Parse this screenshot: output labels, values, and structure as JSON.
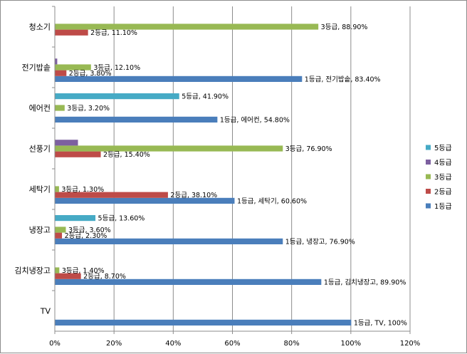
{
  "chart_data": {
    "type": "bar",
    "orientation": "horizontal",
    "categories": [
      "TV",
      "김치냉장고",
      "냉장고",
      "세탁기",
      "선풍기",
      "에어컨",
      "전기밥솥",
      "청소기"
    ],
    "series": [
      {
        "name": "1등급",
        "color": "#4a7ebb",
        "values": [
          100,
          89.9,
          76.9,
          60.6,
          null,
          54.8,
          83.4,
          null
        ],
        "labels": [
          "1등급, TV, 100%",
          "1등급, 김치냉장고, 89.90%",
          "1등급, 냉장고, 76.90%",
          "1등급, 세탁기, 60.60%",
          "",
          "1등급, 에어컨, 54.80%",
          "1등급, 전기밥솥, 83.40%",
          ""
        ]
      },
      {
        "name": "2등급",
        "color": "#be4b48",
        "values": [
          null,
          8.7,
          2.3,
          38.1,
          15.4,
          null,
          3.8,
          11.1
        ],
        "labels": [
          "",
          "2등급, 8.70%",
          "2등급, 2.30%",
          "2등급, 38.10%",
          "2등급, 15.40%",
          "",
          "2등급, 3.80%",
          "2등급, 11.10%"
        ]
      },
      {
        "name": "3등급",
        "color": "#98b954",
        "values": [
          null,
          1.4,
          3.6,
          1.3,
          76.9,
          3.2,
          12.1,
          88.9
        ],
        "labels": [
          "",
          "3등급, 1.40%",
          "3등급, 3.60%",
          "3등급, 1.30%",
          "3등급, 76.90%",
          "3등급, 3.20%",
          "3등급, 12.10%",
          "3등급, 88.90%"
        ]
      },
      {
        "name": "4등급",
        "color": "#7d60a0",
        "values": [
          null,
          null,
          null,
          null,
          7.7,
          null,
          0.7,
          null
        ],
        "labels": [
          "",
          "",
          "",
          "",
          "",
          "",
          "",
          ""
        ]
      },
      {
        "name": "5등급",
        "color": "#46aac5",
        "values": [
          null,
          null,
          13.6,
          null,
          null,
          41.9,
          null,
          null
        ],
        "labels": [
          "",
          "",
          "5등급, 13.60%",
          "",
          "",
          "5등급, 41.90%",
          "",
          ""
        ]
      }
    ],
    "xlim": [
      0,
      120
    ],
    "xticks": [
      "0%",
      "20%",
      "40%",
      "60%",
      "80%",
      "100%",
      "120%"
    ],
    "grid": true,
    "legend": "right"
  }
}
